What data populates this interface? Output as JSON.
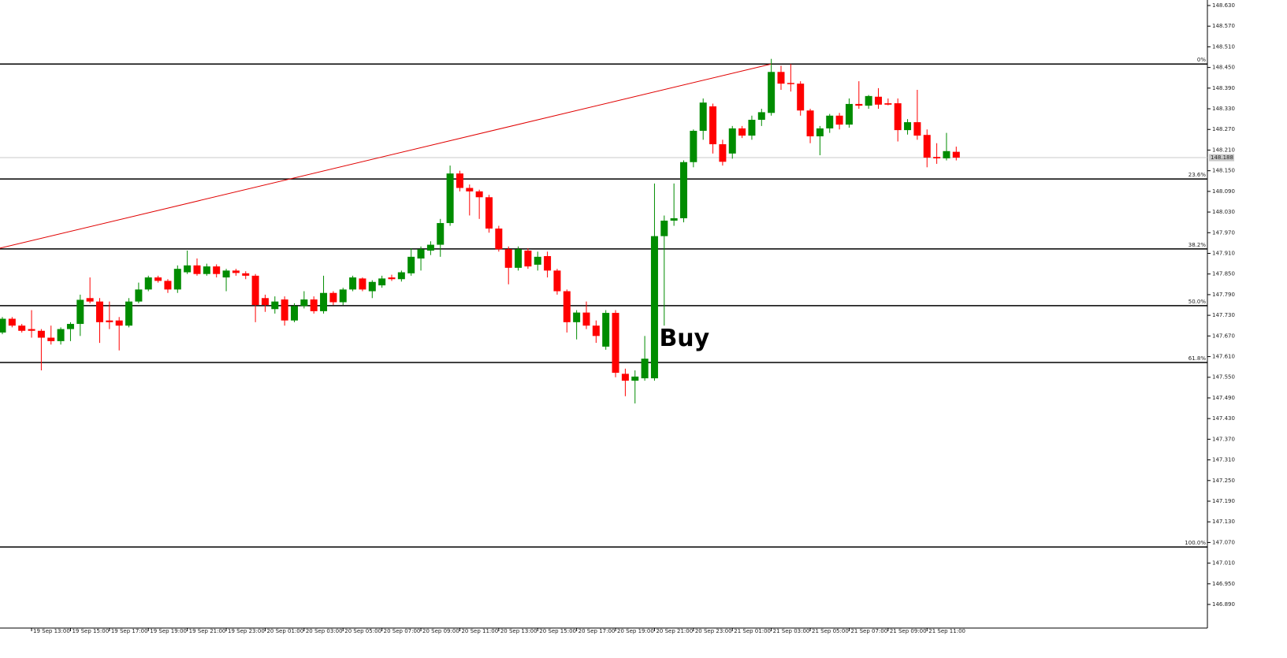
{
  "chart_data": {
    "type": "candlestick",
    "categories": [
      null,
      null,
      null,
      "19 Sep 13:00",
      null,
      null,
      null,
      "19 Sep 15:00",
      null,
      null,
      null,
      "19 Sep 17:00",
      null,
      null,
      null,
      "19 Sep 19:00",
      null,
      null,
      null,
      "19 Sep 21:00",
      null,
      null,
      null,
      "19 Sep 23:00",
      null,
      null,
      null,
      "20 Sep 01:00",
      null,
      null,
      null,
      "20 Sep 03:00",
      null,
      null,
      null,
      "20 Sep 05:00",
      null,
      null,
      null,
      "20 Sep 07:00",
      null,
      null,
      null,
      "20 Sep 09:00",
      null,
      null,
      null,
      "20 Sep 11:00",
      null,
      null,
      null,
      "20 Sep 13:00",
      null,
      null,
      null,
      "20 Sep 15:00",
      null,
      null,
      null,
      "20 Sep 17:00",
      null,
      null,
      null,
      "20 Sep 19:00",
      null,
      null,
      null,
      "20 Sep 21:00",
      null,
      null,
      null,
      "20 Sep 23:00",
      null,
      null,
      null,
      "21 Sep 01:00",
      null,
      null,
      null,
      "21 Sep 03:00",
      null,
      null,
      null,
      "21 Sep 05:00",
      null,
      null,
      null,
      "21 Sep 07:00",
      null,
      null,
      null,
      "21 Sep 09:00",
      null,
      null,
      null,
      "21 Sep 11:00",
      null,
      null,
      null
    ],
    "open": [
      147.68,
      147.72,
      147.7,
      147.69,
      147.685,
      147.665,
      147.655,
      147.69,
      147.705,
      147.78,
      147.77,
      147.715,
      147.715,
      147.7,
      147.77,
      147.805,
      147.84,
      147.83,
      147.805,
      147.855,
      147.875,
      147.85,
      147.872,
      147.84,
      147.86,
      147.852,
      147.845,
      147.78,
      147.748,
      147.776,
      147.715,
      147.757,
      147.776,
      147.742,
      147.795,
      147.768,
      147.805,
      147.837,
      147.8,
      147.817,
      147.84,
      147.835,
      147.852,
      147.895,
      147.918,
      147.935,
      147.998,
      148.142,
      148.1,
      148.09,
      148.073,
      147.982,
      147.922,
      147.868,
      147.918,
      147.877,
      147.902,
      147.86,
      147.8,
      147.71,
      147.738,
      147.7,
      147.639,
      147.737,
      147.56,
      147.54,
      147.547,
      147.547,
      147.96,
      148.005,
      148.012,
      148.175,
      148.266,
      148.337,
      148.227,
      148.2,
      148.273,
      148.252,
      148.298,
      148.318,
      148.437,
      148.405,
      148.403,
      148.325,
      148.25,
      148.273,
      148.31,
      148.284,
      148.344,
      148.339,
      148.365,
      148.346,
      148.346,
      148.268,
      148.291,
      148.254,
      148.19,
      148.186,
      148.205
    ],
    "high": [
      147.725,
      147.725,
      147.705,
      147.745,
      147.69,
      147.7,
      147.695,
      147.71,
      147.79,
      147.84,
      147.78,
      147.77,
      147.725,
      147.78,
      147.825,
      147.845,
      147.845,
      147.835,
      147.875,
      147.918,
      147.895,
      147.88,
      147.878,
      147.865,
      147.865,
      147.858,
      147.85,
      147.79,
      147.785,
      147.785,
      147.765,
      147.8,
      147.785,
      147.845,
      147.8,
      147.81,
      147.845,
      147.84,
      147.832,
      147.845,
      147.848,
      147.86,
      147.925,
      147.93,
      147.945,
      148.01,
      148.165,
      148.15,
      148.11,
      148.095,
      148.08,
      147.99,
      147.93,
      147.93,
      147.925,
      147.915,
      147.915,
      147.865,
      147.805,
      147.745,
      147.77,
      147.715,
      147.745,
      147.745,
      147.575,
      147.57,
      147.67,
      148.113,
      148.02,
      148.113,
      148.18,
      148.27,
      148.36,
      148.345,
      148.24,
      148.28,
      148.28,
      148.31,
      148.33,
      148.475,
      148.455,
      148.46,
      148.41,
      148.33,
      148.28,
      148.315,
      148.318,
      148.36,
      148.41,
      148.37,
      148.39,
      148.36,
      148.36,
      148.3,
      148.385,
      148.27,
      148.23,
      148.26,
      148.22
    ],
    "low": [
      147.675,
      147.695,
      147.68,
      147.665,
      147.57,
      147.645,
      147.645,
      147.655,
      147.67,
      147.765,
      147.65,
      147.69,
      147.628,
      147.695,
      147.765,
      147.8,
      147.825,
      147.795,
      147.795,
      147.85,
      147.845,
      147.845,
      147.84,
      147.8,
      147.845,
      147.835,
      147.71,
      147.74,
      147.735,
      147.7,
      147.71,
      147.75,
      147.735,
      147.735,
      147.76,
      147.76,
      147.8,
      147.8,
      147.78,
      147.81,
      147.83,
      147.828,
      147.845,
      147.86,
      147.905,
      147.9,
      147.99,
      148.09,
      148.02,
      148.01,
      147.97,
      147.915,
      147.82,
      147.86,
      147.865,
      147.86,
      147.84,
      147.79,
      147.68,
      147.66,
      147.69,
      147.65,
      147.63,
      147.55,
      147.495,
      147.474,
      147.54,
      147.54,
      147.7,
      147.99,
      148.0,
      148.16,
      148.24,
      148.2,
      148.165,
      148.185,
      148.245,
      148.24,
      148.28,
      148.31,
      148.385,
      148.38,
      148.31,
      148.23,
      148.195,
      148.26,
      148.27,
      148.275,
      148.33,
      148.33,
      148.33,
      148.34,
      148.235,
      148.255,
      148.24,
      148.16,
      148.17,
      148.18,
      148.18
    ],
    "close": [
      147.72,
      147.7,
      147.685,
      147.685,
      147.665,
      147.655,
      147.69,
      147.705,
      147.775,
      147.77,
      147.71,
      147.71,
      147.7,
      147.77,
      147.805,
      147.84,
      147.83,
      147.805,
      147.865,
      147.875,
      147.85,
      147.872,
      147.85,
      147.86,
      147.853,
      147.845,
      147.76,
      147.76,
      147.77,
      147.715,
      147.757,
      147.776,
      147.742,
      147.795,
      147.768,
      147.805,
      147.84,
      147.805,
      147.827,
      147.837,
      147.835,
      147.855,
      147.9,
      147.922,
      147.935,
      147.998,
      148.142,
      148.1,
      148.09,
      148.073,
      147.982,
      147.922,
      147.868,
      147.922,
      147.872,
      147.9,
      147.86,
      147.8,
      147.71,
      147.738,
      147.7,
      147.67,
      147.737,
      147.563,
      147.54,
      147.552,
      147.604,
      147.96,
      148.005,
      148.012,
      148.175,
      148.266,
      148.348,
      148.227,
      148.176,
      148.273,
      148.252,
      148.298,
      148.32,
      148.437,
      148.403,
      148.403,
      148.325,
      148.25,
      148.273,
      148.31,
      148.284,
      148.344,
      148.339,
      148.367,
      148.342,
      148.342,
      148.268,
      148.291,
      148.252,
      148.188,
      148.186,
      148.207,
      148.188
    ],
    "up_color": "#008c00",
    "down_color": "#ff0000",
    "ylim": [
      146.826,
      148.646
    ],
    "yticks": [
      {
        "value": 148.63,
        "label": "148.630"
      },
      {
        "value": 148.57,
        "label": "148.570"
      },
      {
        "value": 148.51,
        "label": "148.510"
      },
      {
        "value": 148.45,
        "label": "148.450"
      },
      {
        "value": 148.39,
        "label": "148.390"
      },
      {
        "value": 148.33,
        "label": "148.330"
      },
      {
        "value": 148.27,
        "label": "148.270"
      },
      {
        "value": 148.21,
        "label": "148.210"
      },
      {
        "value": 148.15,
        "label": "148.150"
      },
      {
        "value": 148.09,
        "label": "148.090"
      },
      {
        "value": 148.03,
        "label": "148.030"
      },
      {
        "value": 147.97,
        "label": "147.970"
      },
      {
        "value": 147.91,
        "label": "147.910"
      },
      {
        "value": 147.85,
        "label": "147.850"
      },
      {
        "value": 147.79,
        "label": "147.790"
      },
      {
        "value": 147.73,
        "label": "147.730"
      },
      {
        "value": 147.67,
        "label": "147.670"
      },
      {
        "value": 147.61,
        "label": "147.610"
      },
      {
        "value": 147.55,
        "label": "147.550"
      },
      {
        "value": 147.49,
        "label": "147.490"
      },
      {
        "value": 147.43,
        "label": "147.430"
      },
      {
        "value": 147.37,
        "label": "147.370"
      },
      {
        "value": 147.31,
        "label": "147.310"
      },
      {
        "value": 147.25,
        "label": "147.250"
      },
      {
        "value": 147.19,
        "label": "147.190"
      },
      {
        "value": 147.13,
        "label": "147.130"
      },
      {
        "value": 147.07,
        "label": "147.070"
      },
      {
        "value": 147.01,
        "label": "147.010"
      },
      {
        "value": 146.95,
        "label": "146.950"
      },
      {
        "value": 146.89,
        "label": "146.890"
      }
    ],
    "fibonacci": {
      "values": [
        148.46,
        148.126,
        147.923,
        147.758,
        147.593,
        147.057
      ],
      "labels": [
        "0%",
        "23.6%",
        "38.2%",
        "50.0%",
        "61.8%",
        "100.0%"
      ]
    },
    "trendline": {
      "x": [
        0,
        79
      ],
      "values": [
        147.925,
        148.46
      ],
      "color": "#e00000"
    },
    "current_price": {
      "value": 148.188,
      "label": "148.188"
    },
    "annotation": "Buy"
  }
}
